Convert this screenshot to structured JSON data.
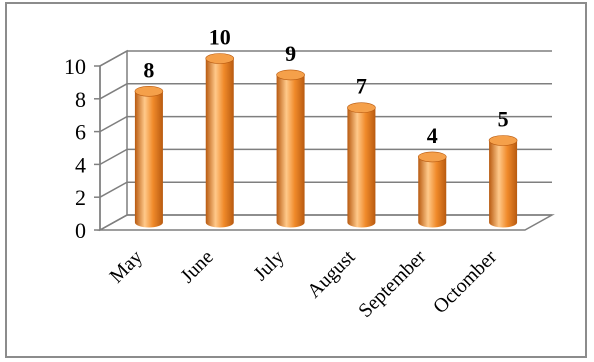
{
  "chart_data": {
    "type": "bar",
    "style": "3d-cylinder",
    "categories": [
      "May",
      "June",
      "July",
      "August",
      "September",
      "Octomber"
    ],
    "values": [
      8,
      10,
      9,
      7,
      4,
      5
    ],
    "data_labels": [
      "8",
      "10",
      "9",
      "7",
      "4",
      "5"
    ],
    "y_ticks": [
      "0",
      "2",
      "4",
      "6",
      "8",
      "10"
    ],
    "ylim": [
      0,
      10
    ],
    "grid": true,
    "legend": "none",
    "colors": {
      "bar_body": "#f08a2a",
      "bar_highlight": "#ffc98a",
      "bar_shadow": "#b85a10",
      "bar_top": "#f5a04a",
      "grid": "#7f7f7f",
      "wall": "#ffffff",
      "frame": "#8c8c8c"
    }
  }
}
